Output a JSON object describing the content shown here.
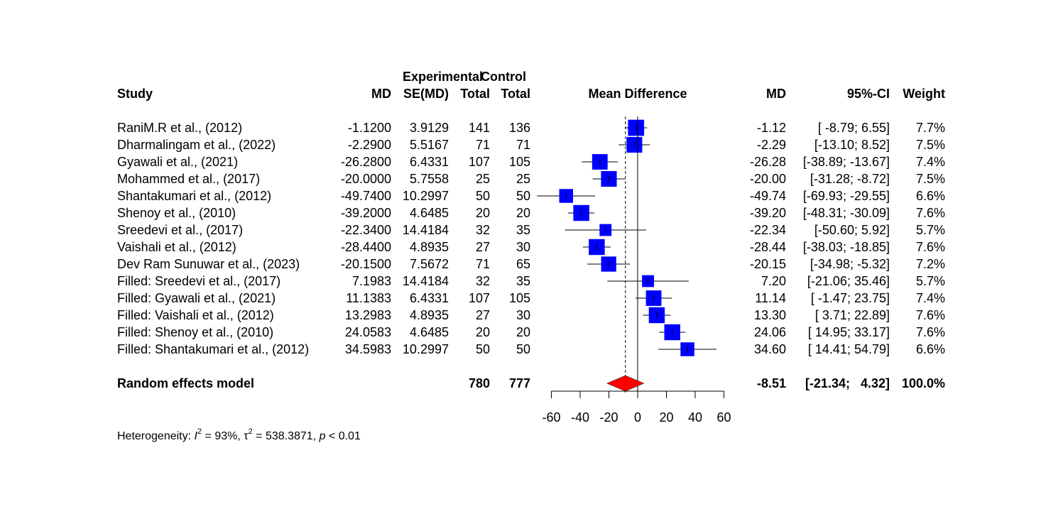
{
  "chart_data": {
    "type": "forest",
    "headers": {
      "study": "Study",
      "md": "MD",
      "se": "SE(MD)",
      "group_exp": "Experimental",
      "group_ctrl": "Control",
      "total_exp": "Total",
      "total_ctrl": "Total",
      "plot_title": "Mean Difference",
      "md_right": "MD",
      "ci": "95%-CI",
      "weight": "Weight"
    },
    "studies": [
      {
        "name": "RaniM.R et al., (2012)",
        "md_txt": "-1.1200",
        "se_txt": "3.9129",
        "n_e": "141",
        "n_c": "136",
        "md_r": "-1.12",
        "ci_txt": "[ -8.79;   6.55]",
        "w_txt": "7.7%",
        "md": -1.12,
        "lo": -8.79,
        "hi": 6.55,
        "weight": 7.7
      },
      {
        "name": "Dharmalingam et al., (2022)",
        "md_txt": "-2.2900",
        "se_txt": "5.5167",
        "n_e": "71",
        "n_c": "71",
        "md_r": "-2.29",
        "ci_txt": "[-13.10;   8.52]",
        "w_txt": "7.5%",
        "md": -2.29,
        "lo": -13.1,
        "hi": 8.52,
        "weight": 7.5
      },
      {
        "name": "Gyawali et al., (2021)",
        "md_txt": "-26.2800",
        "se_txt": "6.4331",
        "n_e": "107",
        "n_c": "105",
        "md_r": "-26.28",
        "ci_txt": "[-38.89; -13.67]",
        "w_txt": "7.4%",
        "md": -26.28,
        "lo": -38.89,
        "hi": -13.67,
        "weight": 7.4
      },
      {
        "name": "Mohammed et al., (2017)",
        "md_txt": "-20.0000",
        "se_txt": "5.7558",
        "n_e": "25",
        "n_c": "25",
        "md_r": "-20.00",
        "ci_txt": "[-31.28;  -8.72]",
        "w_txt": "7.5%",
        "md": -20.0,
        "lo": -31.28,
        "hi": -8.72,
        "weight": 7.5
      },
      {
        "name": "Shantakumari et al., (2012)",
        "md_txt": "-49.7400",
        "se_txt": "10.2997",
        "n_e": "50",
        "n_c": "50",
        "md_r": "-49.74",
        "ci_txt": "[-69.93; -29.55]",
        "w_txt": "6.6%",
        "md": -49.74,
        "lo": -69.93,
        "hi": -29.55,
        "weight": 6.6
      },
      {
        "name": "Shenoy et al., (2010)",
        "md_txt": "-39.2000",
        "se_txt": "4.6485",
        "n_e": "20",
        "n_c": "20",
        "md_r": "-39.20",
        "ci_txt": "[-48.31; -30.09]",
        "w_txt": "7.6%",
        "md": -39.2,
        "lo": -48.31,
        "hi": -30.09,
        "weight": 7.6
      },
      {
        "name": "Sreedevi et al., (2017)",
        "md_txt": "-22.3400",
        "se_txt": "14.4184",
        "n_e": "32",
        "n_c": "35",
        "md_r": "-22.34",
        "ci_txt": "[-50.60;   5.92]",
        "w_txt": "5.7%",
        "md": -22.34,
        "lo": -50.6,
        "hi": 5.92,
        "weight": 5.7
      },
      {
        "name": "Vaishali et al., (2012)",
        "md_txt": "-28.4400",
        "se_txt": "4.8935",
        "n_e": "27",
        "n_c": "30",
        "md_r": "-28.44",
        "ci_txt": "[-38.03; -18.85]",
        "w_txt": "7.6%",
        "md": -28.44,
        "lo": -38.03,
        "hi": -18.85,
        "weight": 7.6
      },
      {
        "name": "Dev Ram Sunuwar et al., (2023)",
        "md_txt": "-20.1500",
        "se_txt": "7.5672",
        "n_e": "71",
        "n_c": "65",
        "md_r": "-20.15",
        "ci_txt": "[-34.98;  -5.32]",
        "w_txt": "7.2%",
        "md": -20.15,
        "lo": -34.98,
        "hi": -5.32,
        "weight": 7.2
      },
      {
        "name": "Filled: Sreedevi et al., (2017)",
        "md_txt": "7.1983",
        "se_txt": "14.4184",
        "n_e": "32",
        "n_c": "35",
        "md_r": "7.20",
        "ci_txt": "[-21.06;  35.46]",
        "w_txt": "5.7%",
        "md": 7.2,
        "lo": -21.06,
        "hi": 35.46,
        "weight": 5.7
      },
      {
        "name": "Filled: Gyawali et al., (2021)",
        "md_txt": "11.1383",
        "se_txt": "6.4331",
        "n_e": "107",
        "n_c": "105",
        "md_r": "11.14",
        "ci_txt": "[ -1.47;  23.75]",
        "w_txt": "7.4%",
        "md": 11.14,
        "lo": -1.47,
        "hi": 23.75,
        "weight": 7.4
      },
      {
        "name": "Filled: Vaishali et al., (2012)",
        "md_txt": "13.2983",
        "se_txt": "4.8935",
        "n_e": "27",
        "n_c": "30",
        "md_r": "13.30",
        "ci_txt": "[  3.71;  22.89]",
        "w_txt": "7.6%",
        "md": 13.3,
        "lo": 3.71,
        "hi": 22.89,
        "weight": 7.6
      },
      {
        "name": "Filled: Shenoy et al., (2010)",
        "md_txt": "24.0583",
        "se_txt": "4.6485",
        "n_e": "20",
        "n_c": "20",
        "md_r": "24.06",
        "ci_txt": "[ 14.95;  33.17]",
        "w_txt": "7.6%",
        "md": 24.06,
        "lo": 14.95,
        "hi": 33.17,
        "weight": 7.6
      },
      {
        "name": "Filled: Shantakumari et al., (2012)",
        "md_txt": "34.5983",
        "se_txt": "10.2997",
        "n_e": "50",
        "n_c": "50",
        "md_r": "34.60",
        "ci_txt": "[ 14.41;  54.79]",
        "w_txt": "6.6%",
        "md": 34.6,
        "lo": 14.41,
        "hi": 54.79,
        "weight": 6.6
      }
    ],
    "pooled": {
      "name": "Random effects model",
      "n_e": "780",
      "n_c": "777",
      "md_r": "-8.51",
      "ci_txt": "[-21.34;   4.32]",
      "w_txt": "100.0%",
      "md": -8.51,
      "lo": -21.34,
      "hi": 4.32
    },
    "xaxis": {
      "min": -60,
      "max": 60,
      "ticks": [
        -60,
        -40,
        -20,
        0,
        20,
        40,
        60
      ]
    },
    "heterogeneity": {
      "prefix": "Heterogeneity: ",
      "i_sym": "I",
      "i_exp": "2",
      "i_val": " = 93%, ",
      "tau_sym": "τ",
      "tau_exp": "2",
      "tau_val": " = 538.3871, ",
      "p_sym": "p",
      "p_val": " < 0.01"
    },
    "colors": {
      "square": "#0000ff",
      "diamond": "#ff0000",
      "line": "#000000"
    }
  }
}
